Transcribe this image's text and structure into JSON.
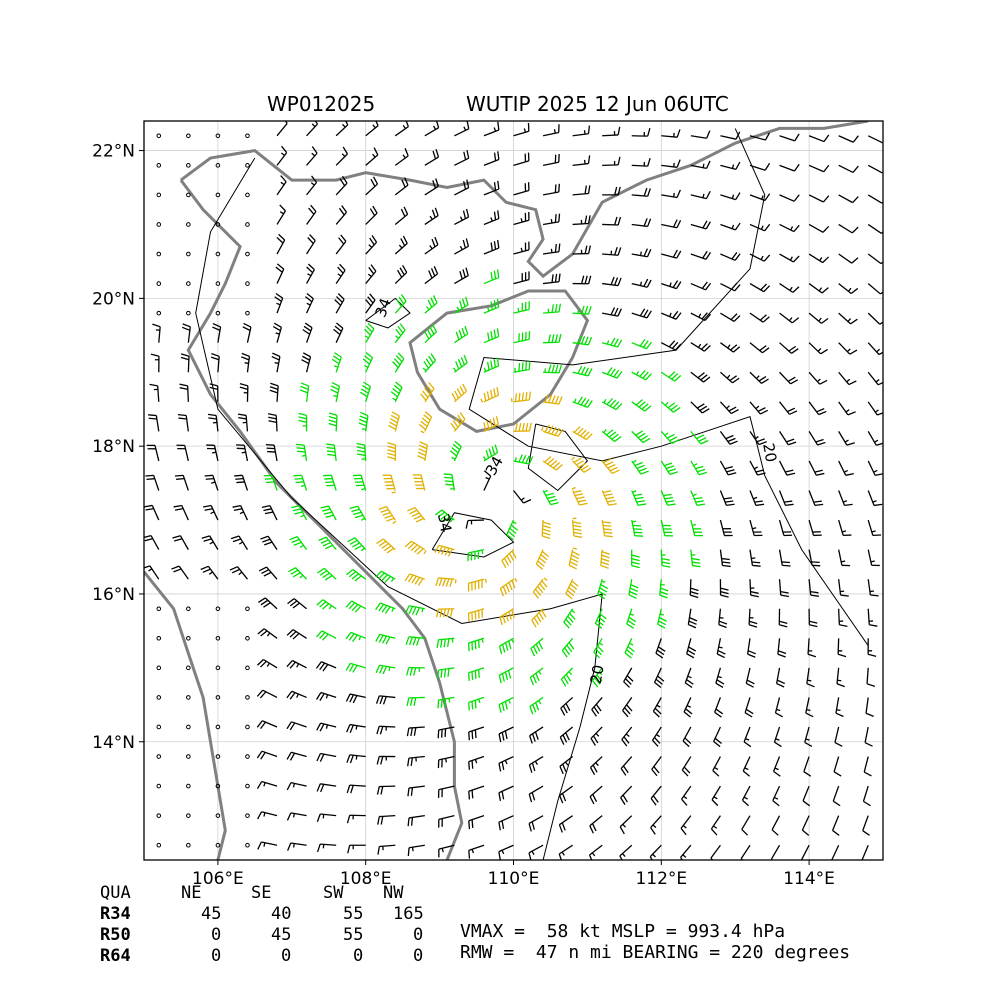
{
  "title": {
    "storm_id": "WP012025",
    "storm_info": "WUTIP 2025 12 Jun 06UTC"
  },
  "map": {
    "lon_range": [
      105,
      115
    ],
    "lat_range": [
      12.4,
      22.4
    ],
    "lon_ticks": [
      "106°E",
      "108°E",
      "110°E",
      "112°E",
      "114°E"
    ],
    "lat_ticks": [
      "14°N",
      "16°N",
      "18°N",
      "20°N",
      "22°N"
    ],
    "contour_labels": [
      "34",
      "34",
      "34",
      "20",
      "20"
    ],
    "colors": {
      "calm_or_weak": "#000000",
      "tropical_storm_34kt": "#00e000",
      "storm_50kt": "#e0b000",
      "coastline": "#808080",
      "contour": "#000000",
      "grid": "#d0d0d0"
    },
    "storm_center": {
      "lon": 109.7,
      "lat": 17.3
    }
  },
  "wind_radii_table": {
    "header": [
      "QUA",
      "NE",
      "SE",
      "SW",
      "NW"
    ],
    "rows": [
      [
        "R34",
        "45",
        "40",
        "55",
        "165"
      ],
      [
        "R50",
        "0",
        "45",
        "55",
        "0"
      ],
      [
        "R64",
        "0",
        "0",
        "0",
        "0"
      ]
    ]
  },
  "storm_stats": {
    "line1": "VMAX =  58 kt MSLP = 993.4 hPa",
    "line2": "RMW =  47 n mi BEARING = 220 degrees"
  }
}
